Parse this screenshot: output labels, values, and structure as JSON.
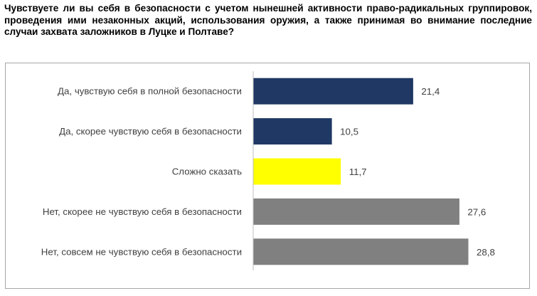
{
  "question": "Чувствуете ли вы себя в безопасности с учетом нынешней активности право-радикальных группировок, проведения ими незаконных акций, использования оружия, а также принимая во внимание последние случаи захвата заложников в Луцке и Полтаве?",
  "chart_data": {
    "type": "bar",
    "orientation": "horizontal",
    "categories": [
      "Да, чувствую себя в полной безопасности",
      "Да, скорее чувствую себя в безопасности",
      "Сложно сказать",
      "Нет, скорее не чувствую себя в безопасности",
      "Нет, совсем не чувствую себя в безопасности"
    ],
    "values": [
      21.4,
      10.5,
      11.7,
      27.6,
      28.8
    ],
    "value_labels": [
      "21,4",
      "10,5",
      "11,7",
      "27,6",
      "28,8"
    ],
    "colors": [
      "#1f3864",
      "#1f3864",
      "#ffff00",
      "#808080",
      "#808080"
    ],
    "xlim": [
      0,
      28.8
    ],
    "grid": false,
    "legend": "none"
  }
}
